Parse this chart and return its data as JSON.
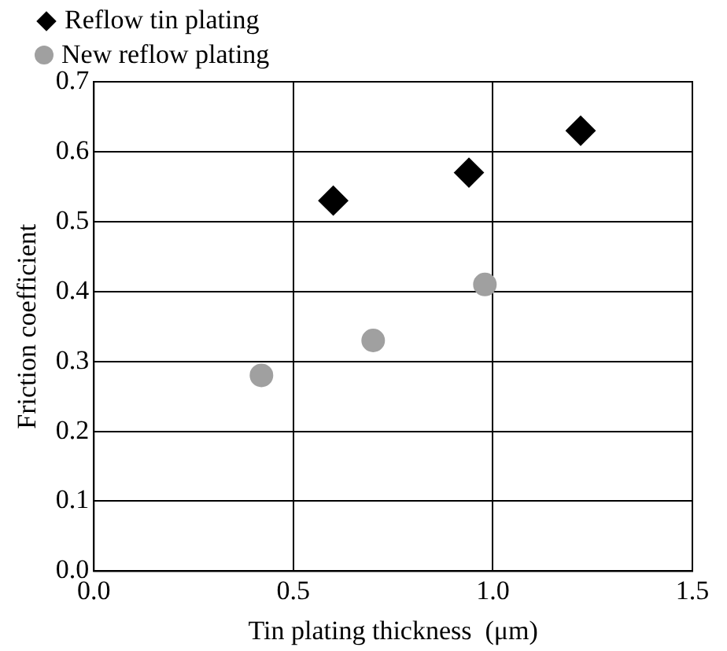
{
  "chart_data": {
    "type": "scatter",
    "xlabel": "Tin plating thickness  (μm)",
    "ylabel": "Friction coefficient",
    "xlim": [
      0,
      1.5
    ],
    "xticks": [
      {
        "value": 0,
        "label": "0.0"
      },
      {
        "value": 0.5,
        "label": "0.5"
      },
      {
        "value": 1,
        "label": "1.0"
      },
      {
        "value": 1.5,
        "label": "1.5"
      }
    ],
    "ylim": [
      0,
      0.7
    ],
    "yticks": [
      {
        "value": 0,
        "label": "0.0"
      },
      {
        "value": 0.1,
        "label": "0.1"
      },
      {
        "value": 0.2,
        "label": "0.2"
      },
      {
        "value": 0.3,
        "label": "0.3"
      },
      {
        "value": 0.4,
        "label": "0.4"
      },
      {
        "value": 0.5,
        "label": "0.5"
      },
      {
        "value": 0.6,
        "label": "0.6"
      },
      {
        "value": 0.7,
        "label": "0.7"
      }
    ],
    "grid": true,
    "legend": "top left",
    "series": [
      {
        "name": "Reflow tin plating",
        "color": "#000000",
        "marker": "diamond",
        "x": [
          0.6,
          0.94,
          1.22
        ],
        "values": [
          0.53,
          0.57,
          0.63
        ]
      },
      {
        "name": "New reflow plating",
        "color": "#a0a0a0",
        "marker": "circle",
        "x": [
          0.42,
          0.7,
          0.98
        ],
        "values": [
          0.28,
          0.33,
          0.41
        ]
      }
    ]
  }
}
